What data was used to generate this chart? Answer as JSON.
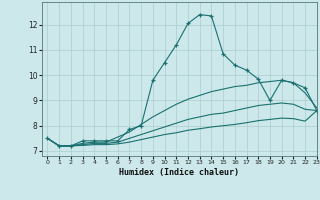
{
  "bg_color": "#cce8ea",
  "grid_color": "#aaccce",
  "line_color": "#1a7070",
  "xlabel": "Humidex (Indice chaleur)",
  "xlim": [
    -0.5,
    23
  ],
  "ylim": [
    6.8,
    12.9
  ],
  "yticks": [
    7,
    8,
    9,
    10,
    11,
    12
  ],
  "xticks": [
    0,
    1,
    2,
    3,
    4,
    5,
    6,
    7,
    8,
    9,
    10,
    11,
    12,
    13,
    14,
    15,
    16,
    17,
    18,
    19,
    20,
    21,
    22,
    23
  ],
  "xtick_labels": [
    "0",
    "1",
    "2",
    "3",
    "4",
    "5",
    "6",
    "7",
    "8",
    "9",
    "10",
    "11",
    "12",
    "13",
    "14",
    "15",
    "16",
    "17",
    "18",
    "19",
    "20",
    "21",
    "22",
    "23"
  ],
  "lines": [
    {
      "x": [
        0,
        1,
        2,
        3,
        4,
        5,
        6,
        7,
        8,
        9,
        10,
        11,
        12,
        13,
        14,
        15,
        16,
        17,
        18,
        19,
        20,
        21,
        22,
        23
      ],
      "y": [
        7.5,
        7.2,
        7.2,
        7.4,
        7.4,
        7.4,
        7.4,
        7.85,
        8.0,
        9.8,
        10.5,
        11.2,
        12.05,
        12.4,
        12.35,
        10.85,
        10.4,
        10.2,
        9.85,
        9.0,
        9.8,
        9.7,
        9.5,
        8.6
      ],
      "marker": "+",
      "linestyle": "-"
    },
    {
      "x": [
        0,
        1,
        2,
        3,
        4,
        5,
        6,
        7,
        8,
        9,
        10,
        11,
        12,
        13,
        14,
        15,
        16,
        17,
        18,
        19,
        20,
        21,
        22,
        23
      ],
      "y": [
        7.5,
        7.2,
        7.2,
        7.3,
        7.35,
        7.35,
        7.55,
        7.75,
        8.05,
        8.35,
        8.6,
        8.85,
        9.05,
        9.2,
        9.35,
        9.45,
        9.55,
        9.6,
        9.7,
        9.75,
        9.8,
        9.7,
        9.3,
        8.7
      ],
      "marker": null,
      "linestyle": "-"
    },
    {
      "x": [
        0,
        1,
        2,
        3,
        4,
        5,
        6,
        7,
        8,
        9,
        10,
        11,
        12,
        13,
        14,
        15,
        16,
        17,
        18,
        19,
        20,
        21,
        22,
        23
      ],
      "y": [
        7.5,
        7.2,
        7.2,
        7.25,
        7.3,
        7.3,
        7.35,
        7.5,
        7.65,
        7.8,
        7.95,
        8.1,
        8.25,
        8.35,
        8.45,
        8.5,
        8.6,
        8.7,
        8.8,
        8.85,
        8.9,
        8.85,
        8.65,
        8.6
      ],
      "marker": null,
      "linestyle": "-"
    },
    {
      "x": [
        0,
        1,
        2,
        3,
        4,
        5,
        6,
        7,
        8,
        9,
        10,
        11,
        12,
        13,
        14,
        15,
        16,
        17,
        18,
        19,
        20,
        21,
        22,
        23
      ],
      "y": [
        7.5,
        7.2,
        7.2,
        7.22,
        7.25,
        7.25,
        7.28,
        7.35,
        7.45,
        7.55,
        7.65,
        7.72,
        7.82,
        7.88,
        7.95,
        8.0,
        8.05,
        8.12,
        8.2,
        8.25,
        8.3,
        8.28,
        8.18,
        8.6
      ],
      "marker": null,
      "linestyle": "-"
    }
  ]
}
